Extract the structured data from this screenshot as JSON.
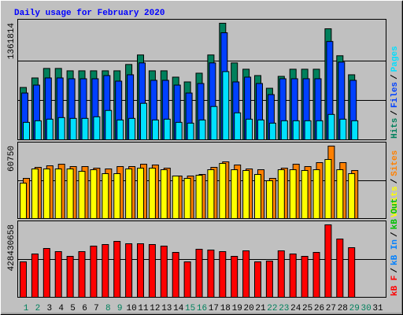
{
  "title": "Daily usage for February 2020",
  "separator": "/",
  "categories": [
    "1",
    "2",
    "3",
    "4",
    "5",
    "6",
    "7",
    "8",
    "9",
    "10",
    "11",
    "12",
    "13",
    "14",
    "15",
    "16",
    "17",
    "18",
    "19",
    "20",
    "21",
    "22",
    "23",
    "24",
    "25",
    "26",
    "27",
    "28",
    "29",
    "30",
    "31"
  ],
  "weekend_days": [
    "1",
    "2",
    "8",
    "9",
    "15",
    "16",
    "22",
    "23",
    "29",
    "30"
  ],
  "weekday_color": "#000000",
  "weekend_color": "#00805c",
  "chart_data": [
    {
      "type": "bar",
      "ylim": [
        0,
        1361814
      ],
      "yticks": [
        1361814
      ],
      "series": [
        {
          "name": "Hits",
          "color": "#00805c",
          "values": [
            611400,
            722600,
            833800,
            833800,
            806000,
            806000,
            806000,
            806000,
            806000,
            880100,
            991200,
            806000,
            806000,
            731900,
            676300,
            778200,
            991200,
            1361814,
            898600,
            824500,
            750400,
            602200,
            741100,
            824500,
            824500,
            824500,
            1297000,
            982000,
            759600,
            null,
            null
          ]
        },
        {
          "name": "Files",
          "color": "#0040ff",
          "values": [
            546600,
            639200,
            722600,
            722600,
            713300,
            713300,
            713300,
            750400,
            685500,
            759600,
            898600,
            694800,
            694800,
            639200,
            546600,
            657700,
            898600,
            1250600,
            676300,
            731900,
            657700,
            528000,
            713300,
            713300,
            713300,
            713300,
            1148700,
            907900,
            694800,
            null,
            null
          ]
        },
        {
          "name": "Pages",
          "color": "#00e0ff",
          "values": [
            203800,
            222300,
            240900,
            259400,
            250100,
            250100,
            268700,
            342800,
            231600,
            250100,
            426100,
            231600,
            240900,
            203800,
            194500,
            231600,
            389100,
            796700,
            315000,
            240900,
            231600,
            194500,
            222300,
            222300,
            222300,
            222300,
            296400,
            240900,
            222300,
            null,
            null
          ]
        }
      ]
    },
    {
      "type": "bar",
      "ylim": [
        0,
        60750
      ],
      "yticks": [
        60750
      ],
      "series": [
        {
          "name": "Visits",
          "color": "#ffff00",
          "values": [
            29710,
            41600,
            41600,
            41600,
            41600,
            39620,
            40940,
            37640,
            37640,
            41600,
            42260,
            42260,
            40940,
            35660,
            33680,
            36320,
            40940,
            46220,
            40940,
            40280,
            36980,
            31690,
            40940,
            40940,
            40280,
            40940,
            49520,
            40940,
            37640,
            null,
            null
          ]
        },
        {
          "name": "Sites",
          "color": "#ff8000",
          "values": [
            33680,
            42920,
            44240,
            45560,
            43580,
            43580,
            42260,
            41600,
            43580,
            43580,
            45560,
            44900,
            42260,
            35660,
            35660,
            36980,
            42920,
            47540,
            44900,
            41600,
            40940,
            33680,
            42260,
            45560,
            43580,
            46880,
            60750,
            46880,
            40280,
            null,
            null
          ]
        }
      ]
    },
    {
      "type": "bar",
      "ylim": [
        0,
        428430658
      ],
      "yticks": [
        428430658
      ],
      "series": [
        {
          "name": "kB F",
          "color": "#ff0000",
          "values": [
            209558000,
            256127000,
            288725000,
            270098000,
            242156000,
            270098000,
            302696000,
            312009000,
            330637000,
            316666000,
            316666000,
            312009000,
            302696000,
            265441000,
            209558000,
            284068000,
            279411000,
            270098000,
            242156000,
            274754000,
            209558000,
            214215000,
            274754000,
            256127000,
            242156000,
            265441000,
            428430658,
            344607000,
            293382000,
            null,
            null
          ]
        }
      ],
      "legend": [
        {
          "name": "kB In",
          "color": "#0080ff"
        },
        {
          "name": "kB Out",
          "color": "#00c000"
        }
      ]
    }
  ]
}
